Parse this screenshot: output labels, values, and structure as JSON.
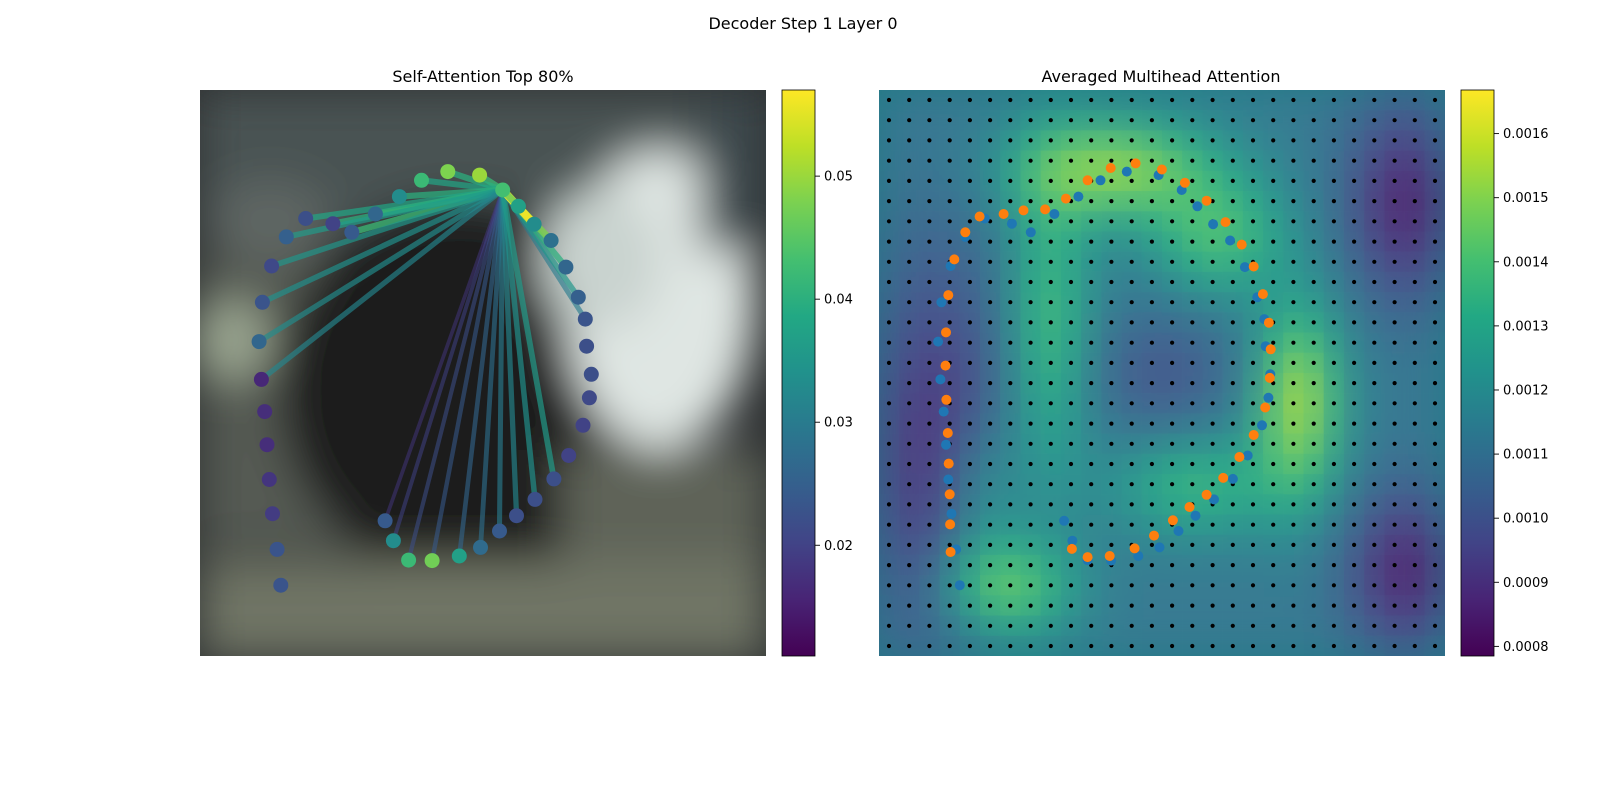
{
  "figure": {
    "suptitle": "Decoder Step 1 Layer 0"
  },
  "chart_data": [
    {
      "type": "scatter",
      "title": "Self-Attention Top 80%",
      "xlabel": "",
      "ylabel": "",
      "axes_visible": false,
      "background": "blurred photo, dark center, bright white object on right",
      "points": [
        [
          0.211,
          0.79
        ],
        [
          0.229,
          0.829
        ],
        [
          0.262,
          0.867
        ],
        [
          0.313,
          0.868
        ],
        [
          0.372,
          0.859
        ],
        [
          0.418,
          0.842
        ],
        [
          0.459,
          0.81
        ],
        [
          0.496,
          0.78
        ],
        [
          0.536,
          0.748
        ],
        [
          0.577,
          0.708
        ],
        [
          0.609,
          0.662
        ],
        [
          0.64,
          0.603
        ],
        [
          0.654,
          0.549
        ],
        [
          0.658,
          0.503
        ],
        [
          0.648,
          0.448
        ],
        [
          0.645,
          0.395
        ],
        [
          0.63,
          0.352
        ],
        [
          0.603,
          0.293
        ],
        [
          0.571,
          0.241
        ],
        [
          0.534,
          0.209
        ],
        [
          0.5,
          0.174
        ],
        [
          0.466,
          0.142
        ],
        [
          0.416,
          0.113
        ],
        [
          0.347,
          0.106
        ],
        [
          0.29,
          0.123
        ],
        [
          0.242,
          0.155
        ],
        [
          0.19,
          0.189
        ],
        [
          0.139,
          0.225
        ],
        [
          0.098,
          0.208
        ],
        [
          0.039,
          0.198
        ],
        [
          -0.003,
          0.234
        ],
        [
          -0.035,
          0.291
        ],
        [
          -0.055,
          0.362
        ],
        [
          -0.062,
          0.439
        ],
        [
          -0.057,
          0.513
        ],
        [
          -0.05,
          0.576
        ],
        [
          -0.045,
          0.641
        ],
        [
          -0.04,
          0.709
        ],
        [
          -0.033,
          0.776
        ],
        [
          -0.023,
          0.846
        ],
        [
          -0.015,
          0.916
        ]
      ],
      "point_attention": [
        0.024,
        0.033,
        0.042,
        0.047,
        0.037,
        0.027,
        0.024,
        0.022,
        0.022,
        0.022,
        0.02,
        0.02,
        0.021,
        0.022,
        0.022,
        0.023,
        0.025,
        0.026,
        0.028,
        0.033,
        0.037,
        0.043,
        0.05,
        0.048,
        0.042,
        0.033,
        0.026,
        0.024,
        0.02,
        0.022,
        0.025,
        0.021,
        0.023,
        0.026,
        0.016,
        0.017,
        0.017,
        0.018,
        0.019,
        0.023,
        0.023
      ],
      "attention_links": [
        {
          "from": 21,
          "to": 0,
          "weight": 0.018
        },
        {
          "from": 21,
          "to": 1,
          "weight": 0.02
        },
        {
          "from": 21,
          "to": 2,
          "weight": 0.022
        },
        {
          "from": 21,
          "to": 3,
          "weight": 0.024
        },
        {
          "from": 21,
          "to": 4,
          "weight": 0.026
        },
        {
          "from": 21,
          "to": 5,
          "weight": 0.028
        },
        {
          "from": 21,
          "to": 6,
          "weight": 0.03
        },
        {
          "from": 21,
          "to": 7,
          "weight": 0.032
        },
        {
          "from": 21,
          "to": 8,
          "weight": 0.034
        },
        {
          "from": 21,
          "to": 9,
          "weight": 0.036
        },
        {
          "from": 21,
          "to": 15,
          "weight": 0.03
        },
        {
          "from": 21,
          "to": 16,
          "weight": 0.035
        },
        {
          "from": 21,
          "to": 17,
          "weight": 0.04
        },
        {
          "from": 21,
          "to": 18,
          "weight": 0.048
        },
        {
          "from": 21,
          "to": 19,
          "weight": 0.057
        },
        {
          "from": 21,
          "to": 20,
          "weight": 0.046
        },
        {
          "from": 21,
          "to": 22,
          "weight": 0.042
        },
        {
          "from": 21,
          "to": 23,
          "weight": 0.04
        },
        {
          "from": 21,
          "to": 24,
          "weight": 0.038
        },
        {
          "from": 21,
          "to": 25,
          "weight": 0.04
        },
        {
          "from": 21,
          "to": 26,
          "weight": 0.044
        },
        {
          "from": 21,
          "to": 27,
          "weight": 0.042
        },
        {
          "from": 21,
          "to": 28,
          "weight": 0.04
        },
        {
          "from": 21,
          "to": 29,
          "weight": 0.038
        },
        {
          "from": 21,
          "to": 30,
          "weight": 0.036
        },
        {
          "from": 21,
          "to": 31,
          "weight": 0.035
        },
        {
          "from": 21,
          "to": 32,
          "weight": 0.034
        },
        {
          "from": 21,
          "to": 33,
          "weight": 0.033
        },
        {
          "from": 21,
          "to": 34,
          "weight": 0.032
        }
      ],
      "colorbar": {
        "colormap": "viridis",
        "vmin": 0.011,
        "vmax": 0.057,
        "ticks": [
          0.02,
          0.03,
          0.04,
          0.05
        ],
        "tick_labels": [
          "0.02",
          "0.03",
          "0.04",
          "0.05"
        ]
      }
    },
    {
      "type": "heatmap",
      "title": "Averaged Multihead Attention",
      "xlabel": "",
      "ylabel": "",
      "axes_visible": false,
      "grid_dots": {
        "rows": 28,
        "cols": 28,
        "color": "#000000"
      },
      "overlay_colormap": "viridis",
      "hotspots": [
        {
          "cx": 0.42,
          "cy": 0.14,
          "sx": 0.12,
          "sy": 0.06,
          "v": 1.0
        },
        {
          "cx": 0.22,
          "cy": 0.88,
          "sx": 0.08,
          "sy": 0.06,
          "v": 0.9
        },
        {
          "cx": 0.74,
          "cy": 0.55,
          "sx": 0.05,
          "sy": 0.12,
          "v": 1.1
        },
        {
          "cx": 0.6,
          "cy": 0.26,
          "sx": 0.08,
          "sy": 0.07,
          "v": 0.7
        },
        {
          "cx": 0.3,
          "cy": 0.42,
          "sx": 0.05,
          "sy": 0.2,
          "v": 0.7
        },
        {
          "cx": 0.56,
          "cy": 0.7,
          "sx": 0.1,
          "sy": 0.06,
          "v": 0.6
        },
        {
          "cx": 0.18,
          "cy": 0.72,
          "sx": 0.05,
          "sy": 0.1,
          "v": 0.5
        }
      ],
      "cool_spots": [
        {
          "cx": 0.1,
          "cy": 0.65,
          "sx": 0.1,
          "sy": 0.25,
          "v": -0.6
        },
        {
          "cx": 0.93,
          "cy": 0.2,
          "sx": 0.07,
          "sy": 0.12,
          "v": -0.7
        },
        {
          "cx": 0.93,
          "cy": 0.85,
          "sx": 0.07,
          "sy": 0.1,
          "v": -0.7
        },
        {
          "cx": 0.5,
          "cy": 0.5,
          "sx": 0.1,
          "sy": 0.08,
          "v": -0.3
        }
      ],
      "series": [
        {
          "color": "#1f77b4",
          "points": [
            [
              0.211,
              0.79
            ],
            [
              0.229,
              0.829
            ],
            [
              0.262,
              0.867
            ],
            [
              0.313,
              0.868
            ],
            [
              0.372,
              0.859
            ],
            [
              0.418,
              0.842
            ],
            [
              0.459,
              0.81
            ],
            [
              0.496,
              0.78
            ],
            [
              0.536,
              0.748
            ],
            [
              0.577,
              0.708
            ],
            [
              0.609,
              0.662
            ],
            [
              0.64,
              0.603
            ],
            [
              0.654,
              0.549
            ],
            [
              0.658,
              0.503
            ],
            [
              0.648,
              0.448
            ],
            [
              0.645,
              0.395
            ],
            [
              0.63,
              0.352
            ],
            [
              0.603,
              0.293
            ],
            [
              0.571,
              0.241
            ],
            [
              0.534,
              0.209
            ],
            [
              0.5,
              0.174
            ],
            [
              0.466,
              0.142
            ],
            [
              0.416,
              0.113
            ],
            [
              0.347,
              0.106
            ],
            [
              0.29,
              0.123
            ],
            [
              0.242,
              0.155
            ],
            [
              0.19,
              0.189
            ],
            [
              0.139,
              0.225
            ],
            [
              0.098,
              0.208
            ],
            [
              0.039,
              0.198
            ],
            [
              -0.003,
              0.234
            ],
            [
              -0.035,
              0.291
            ],
            [
              -0.055,
              0.362
            ],
            [
              -0.062,
              0.439
            ],
            [
              -0.057,
              0.513
            ],
            [
              -0.05,
              0.576
            ],
            [
              -0.045,
              0.641
            ],
            [
              -0.04,
              0.709
            ],
            [
              -0.033,
              0.776
            ],
            [
              -0.023,
              0.846
            ],
            [
              -0.015,
              0.916
            ]
          ]
        },
        {
          "color": "#ff7f0e",
          "points": [
            [
              0.228,
              0.845
            ],
            [
              0.262,
              0.861
            ],
            [
              0.31,
              0.859
            ],
            [
              0.364,
              0.844
            ],
            [
              0.406,
              0.819
            ],
            [
              0.447,
              0.789
            ],
            [
              0.483,
              0.763
            ],
            [
              0.52,
              0.739
            ],
            [
              0.556,
              0.706
            ],
            [
              0.591,
              0.665
            ],
            [
              0.622,
              0.622
            ],
            [
              0.647,
              0.568
            ],
            [
              0.657,
              0.51
            ],
            [
              0.659,
              0.454
            ],
            [
              0.655,
              0.402
            ],
            [
              0.642,
              0.346
            ],
            [
              0.622,
              0.292
            ],
            [
              0.596,
              0.249
            ],
            [
              0.561,
              0.205
            ],
            [
              0.52,
              0.163
            ],
            [
              0.473,
              0.128
            ],
            [
              0.423,
              0.102
            ],
            [
              0.366,
              0.09
            ],
            [
              0.312,
              0.099
            ],
            [
              0.262,
              0.123
            ],
            [
              0.215,
              0.159
            ],
            [
              0.17,
              0.18
            ],
            [
              0.123,
              0.182
            ],
            [
              0.08,
              0.189
            ],
            [
              0.028,
              0.194
            ],
            [
              -0.003,
              0.225
            ],
            [
              -0.027,
              0.278
            ],
            [
              -0.04,
              0.348
            ],
            [
              -0.045,
              0.421
            ],
            [
              -0.046,
              0.486
            ],
            [
              -0.044,
              0.553
            ],
            [
              -0.041,
              0.618
            ],
            [
              -0.039,
              0.678
            ],
            [
              -0.037,
              0.738
            ],
            [
              -0.036,
              0.797
            ],
            [
              -0.035,
              0.851
            ]
          ]
        }
      ],
      "colorbar": {
        "colormap": "viridis",
        "vmin": 0.000785,
        "vmax": 0.001668,
        "ticks": [
          0.0008,
          0.0009,
          0.001,
          0.0011,
          0.0012,
          0.0013,
          0.0014,
          0.0015,
          0.0016
        ],
        "tick_labels": [
          "0.0008",
          "0.0009",
          "0.0010",
          "0.0011",
          "0.0012",
          "0.0013",
          "0.0014",
          "0.0015",
          "0.0016"
        ]
      }
    }
  ]
}
